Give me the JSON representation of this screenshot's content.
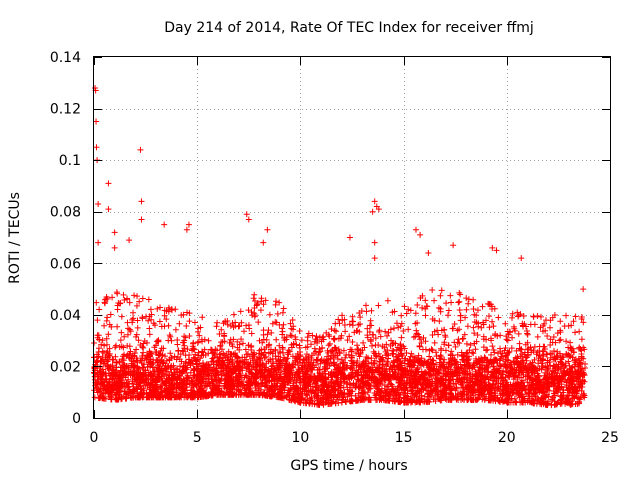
{
  "chart_data": {
    "type": "scatter",
    "title": "Day 214 of 2014, Rate Of TEC Index for receiver ffmj",
    "xlabel": "GPS time / hours",
    "ylabel": "ROTI / TECUs",
    "xlim": [
      0,
      25
    ],
    "ylim": [
      0,
      0.14
    ],
    "x_ticks": [
      0,
      5,
      10,
      15,
      20,
      25
    ],
    "x_tick_labels": [
      "0",
      "5",
      "10",
      "15",
      "20",
      "25"
    ],
    "y_ticks": [
      0,
      0.02,
      0.04,
      0.06,
      0.08,
      0.1,
      0.12,
      0.14
    ],
    "y_tick_labels": [
      "0",
      "0.02",
      "0.04",
      "0.06",
      "0.08",
      "0.1",
      "0.12",
      "0.14"
    ],
    "grid": true,
    "marker": "plus",
    "series": [
      {
        "name": "ROTI",
        "color": "#ff0000",
        "points": [
          [
            0.05,
            0.128
          ],
          [
            0.08,
            0.127
          ],
          [
            0.1,
            0.115
          ],
          [
            0.12,
            0.105
          ],
          [
            0.15,
            0.1
          ],
          [
            0.2,
            0.083
          ],
          [
            0.2,
            0.068
          ],
          [
            0.7,
            0.091
          ],
          [
            0.7,
            0.081
          ],
          [
            1.0,
            0.072
          ],
          [
            2.25,
            0.104
          ],
          [
            2.3,
            0.084
          ],
          [
            2.3,
            0.077
          ],
          [
            3.4,
            0.075
          ],
          [
            4.6,
            0.075
          ],
          [
            4.5,
            0.073
          ],
          [
            7.4,
            0.079
          ],
          [
            7.5,
            0.077
          ],
          [
            8.4,
            0.073
          ],
          [
            8.2,
            0.068
          ],
          [
            13.6,
            0.084
          ],
          [
            13.7,
            0.082
          ],
          [
            13.5,
            0.08
          ],
          [
            13.8,
            0.081
          ],
          [
            13.6,
            0.068
          ],
          [
            15.6,
            0.073
          ],
          [
            15.8,
            0.071
          ],
          [
            16.2,
            0.064
          ],
          [
            17.4,
            0.067
          ],
          [
            19.3,
            0.066
          ],
          [
            19.5,
            0.065
          ],
          [
            20.7,
            0.062
          ],
          [
            23.7,
            0.05
          ],
          [
            13.6,
            0.062
          ],
          [
            12.4,
            0.07
          ],
          [
            1.7,
            0.069
          ],
          [
            1.0,
            0.066
          ]
        ],
        "density_envelope": {
          "x_hours": [
            0,
            1,
            2,
            3,
            4,
            5,
            6,
            7,
            8,
            9,
            10,
            11,
            12,
            13,
            14,
            15,
            16,
            17,
            18,
            19,
            20,
            21,
            22,
            23,
            23.8
          ],
          "bulk_upper": [
            0.045,
            0.05,
            0.048,
            0.045,
            0.042,
            0.04,
            0.037,
            0.042,
            0.05,
            0.045,
            0.034,
            0.032,
            0.04,
            0.045,
            0.046,
            0.045,
            0.05,
            0.05,
            0.048,
            0.045,
            0.042,
            0.04,
            0.04,
            0.04,
            0.04
          ],
          "bulk_lower": [
            0.008,
            0.007,
            0.008,
            0.008,
            0.008,
            0.008,
            0.009,
            0.009,
            0.009,
            0.008,
            0.006,
            0.005,
            0.006,
            0.007,
            0.007,
            0.006,
            0.006,
            0.007,
            0.007,
            0.007,
            0.006,
            0.006,
            0.005,
            0.005,
            0.006
          ],
          "dense_center": 0.015
        }
      }
    ]
  }
}
